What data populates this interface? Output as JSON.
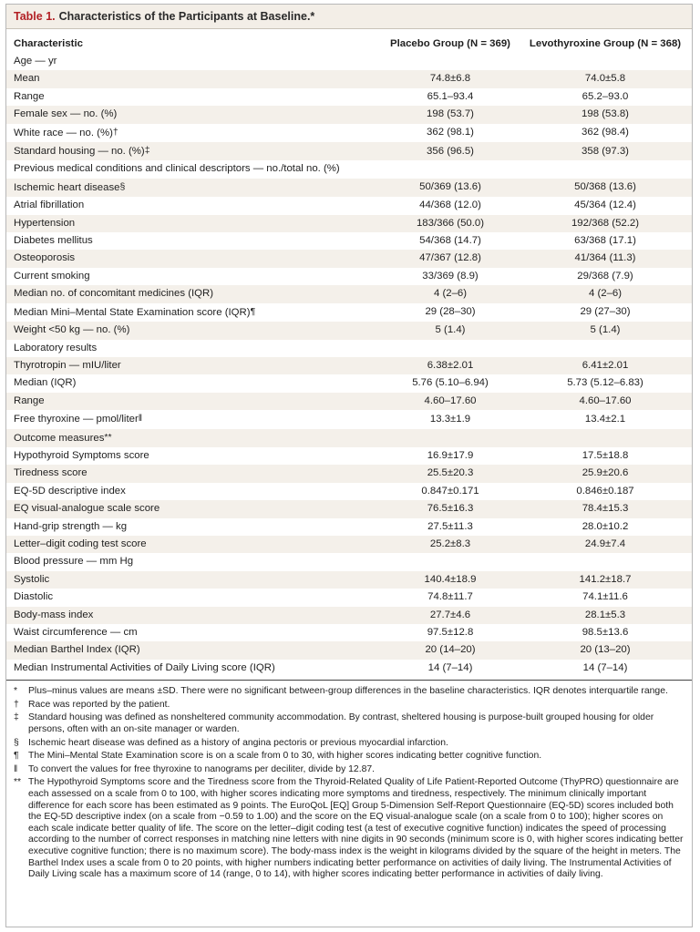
{
  "table": {
    "label": "Table 1.",
    "title": "Characteristics of the Participants at Baseline.*",
    "headers": [
      "Characteristic",
      "Placebo Group (N = 369)",
      "Levothyroxine Group (N = 368)"
    ],
    "rows": [
      {
        "label": "Age — yr",
        "mark": "",
        "placebo": "",
        "levo": ""
      },
      {
        "label": "Mean",
        "mark": "",
        "placebo": "74.8±6.8",
        "levo": "74.0±5.8"
      },
      {
        "label": "Range",
        "mark": "",
        "placebo": "65.1–93.4",
        "levo": "65.2–93.0"
      },
      {
        "label": "Female sex — no. (%)",
        "mark": "",
        "placebo": "198 (53.7)",
        "levo": "198 (53.8)"
      },
      {
        "label": "White race — no. (%)",
        "mark": "†",
        "placebo": "362 (98.1)",
        "levo": "362 (98.4)"
      },
      {
        "label": "Standard housing — no. (%)",
        "mark": "‡",
        "placebo": "356 (96.5)",
        "levo": "358 (97.3)"
      },
      {
        "label": "Previous medical conditions and clinical descriptors — no./total no. (%)",
        "mark": "",
        "placebo": "",
        "levo": ""
      },
      {
        "label": "Ischemic heart disease",
        "mark": "§",
        "placebo": "50/369 (13.6)",
        "levo": "50/368 (13.6)"
      },
      {
        "label": "Atrial fibrillation",
        "mark": "",
        "placebo": "44/368 (12.0)",
        "levo": "45/364 (12.4)"
      },
      {
        "label": "Hypertension",
        "mark": "",
        "placebo": "183/366 (50.0)",
        "levo": "192/368 (52.2)"
      },
      {
        "label": "Diabetes mellitus",
        "mark": "",
        "placebo": "54/368 (14.7)",
        "levo": "63/368 (17.1)"
      },
      {
        "label": "Osteoporosis",
        "mark": "",
        "placebo": "47/367 (12.8)",
        "levo": "41/364 (11.3)"
      },
      {
        "label": "Current smoking",
        "mark": "",
        "placebo": "33/369 (8.9)",
        "levo": "29/368 (7.9)"
      },
      {
        "label": "Median no. of concomitant medicines (IQR)",
        "mark": "",
        "placebo": "4 (2–6)",
        "levo": "4 (2–6)"
      },
      {
        "label": "Median Mini–Mental State Examination score (IQR)",
        "mark": "¶",
        "placebo": "29 (28–30)",
        "levo": "29 (27–30)"
      },
      {
        "label": "Weight <50 kg — no. (%)",
        "mark": "",
        "placebo": "5 (1.4)",
        "levo": "5 (1.4)"
      },
      {
        "label": "Laboratory results",
        "mark": "",
        "placebo": "",
        "levo": ""
      },
      {
        "label": "Thyrotropin — mIU/liter",
        "mark": "",
        "placebo": "6.38±2.01",
        "levo": "6.41±2.01"
      },
      {
        "label": "Median (IQR)",
        "mark": "",
        "placebo": "5.76 (5.10–6.94)",
        "levo": "5.73 (5.12–6.83)"
      },
      {
        "label": "Range",
        "mark": "",
        "placebo": "4.60–17.60",
        "levo": "4.60–17.60"
      },
      {
        "label": "Free thyroxine — pmol/liter",
        "mark": "‖",
        "placebo": "13.3±1.9",
        "levo": "13.4±2.1"
      },
      {
        "label": "Outcome measures",
        "mark": "**",
        "placebo": "",
        "levo": ""
      },
      {
        "label": "Hypothyroid Symptoms score",
        "mark": "",
        "placebo": "16.9±17.9",
        "levo": "17.5±18.8"
      },
      {
        "label": "Tiredness score",
        "mark": "",
        "placebo": "25.5±20.3",
        "levo": "25.9±20.6"
      },
      {
        "label": "EQ-5D descriptive index",
        "mark": "",
        "placebo": "0.847±0.171",
        "levo": "0.846±0.187"
      },
      {
        "label": "EQ visual-analogue scale score",
        "mark": "",
        "placebo": "76.5±16.3",
        "levo": "78.4±15.3"
      },
      {
        "label": "Hand-grip strength — kg",
        "mark": "",
        "placebo": "27.5±11.3",
        "levo": "28.0±10.2"
      },
      {
        "label": "Letter–digit coding test score",
        "mark": "",
        "placebo": "25.2±8.3",
        "levo": "24.9±7.4"
      },
      {
        "label": "Blood pressure — mm Hg",
        "mark": "",
        "placebo": "",
        "levo": ""
      },
      {
        "label": "Systolic",
        "mark": "",
        "placebo": "140.4±18.9",
        "levo": "141.2±18.7"
      },
      {
        "label": "Diastolic",
        "mark": "",
        "placebo": "74.8±11.7",
        "levo": "74.1±11.6"
      },
      {
        "label": "Body-mass index",
        "mark": "",
        "placebo": "27.7±4.6",
        "levo": "28.1±5.3"
      },
      {
        "label": "Waist circumference — cm",
        "mark": "",
        "placebo": "97.5±12.8",
        "levo": "98.5±13.6"
      },
      {
        "label": "Median Barthel Index (IQR)",
        "mark": "",
        "placebo": "20 (14–20)",
        "levo": "20 (13–20)"
      },
      {
        "label": "Median Instrumental Activities of Daily Living score (IQR)",
        "mark": "",
        "placebo": "14 (7–14)",
        "levo": "14 (7–14)"
      }
    ]
  },
  "footnotes": [
    {
      "mark": "*",
      "text": "Plus–minus values are means ±SD. There were no significant between-group differences in the baseline characteristics. IQR denotes interquartile range."
    },
    {
      "mark": "†",
      "text": "Race was reported by the patient."
    },
    {
      "mark": "‡",
      "text": "Standard housing was defined as nonsheltered community accommodation. By contrast, sheltered housing is purpose-built grouped housing for older persons, often with an on-site manager or warden."
    },
    {
      "mark": "§",
      "text": "Ischemic heart disease was defined as a history of angina pectoris or previous myocardial infarction."
    },
    {
      "mark": "¶",
      "text": "The Mini–Mental State Examination score is on a scale from 0 to 30, with higher scores indicating better cognitive function."
    },
    {
      "mark": "‖",
      "text": "To convert the values for free thyroxine to nanograms per deciliter, divide by 12.87."
    },
    {
      "mark": "**",
      "text": "The Hypothyroid Symptoms score and the Tiredness score from the Thyroid-Related Quality of Life Patient-Reported Outcome (ThyPRO) questionnaire are each assessed on a scale from 0 to 100, with higher scores indicating more symptoms and tiredness, respectively. The minimum clinically important difference for each score has been estimated as 9 points. The EuroQoL [EQ] Group 5-Dimension Self-Report Questionnaire (EQ-5D) scores included both the EQ-5D descriptive index (on a scale from −0.59 to 1.00) and the score on the EQ visual-analogue scale (on a scale from 0 to 100); higher scores on each scale indicate better quality of life. The score on the letter–digit coding test (a test of executive cognitive function) indicates the speed of processing according to the number of correct responses in matching nine letters with nine digits in 90 seconds (minimum score is 0, with higher scores indicating better executive cognitive function; there is no maximum score). The body-mass index is the weight in kilograms divided by the square of the height in meters. The Barthel Index uses a scale from 0 to 20 points, with higher numbers indicating better performance on activities of daily living. The Instrumental Activities of Daily Living scale has a maximum score of 14 (range, 0 to 14), with higher scores indicating better performance in activities of daily living."
    }
  ]
}
